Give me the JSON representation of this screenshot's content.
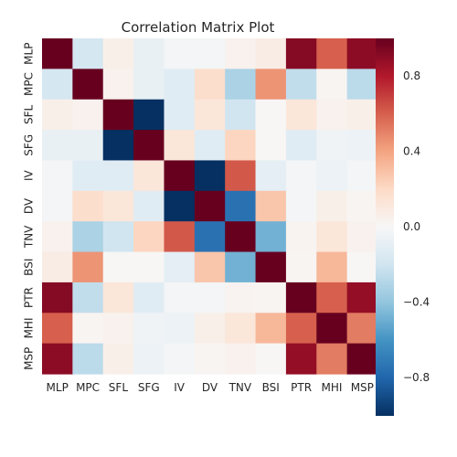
{
  "chart_data": {
    "type": "heatmap",
    "title": "Correlation Matrix Plot",
    "xlabel": "",
    "ylabel": "",
    "labels": [
      "MLP",
      "MPC",
      "SFL",
      "SFG",
      "IV",
      "DV",
      "TNV",
      "BSI",
      "PTR",
      "MHI",
      "MSP"
    ],
    "colormap": "RdBu_r",
    "vmin": -1.0,
    "vmax": 1.0,
    "colorbar_ticks": [
      -0.8,
      -0.4,
      0.0,
      0.4,
      0.8
    ],
    "colorbar_tick_labels": [
      "−0.8",
      "−0.4",
      "0.0",
      "0.4",
      "0.8"
    ],
    "matrix": [
      [
        1.0,
        -0.18,
        0.06,
        -0.08,
        -0.02,
        -0.02,
        0.04,
        0.08,
        0.92,
        0.6,
        0.9
      ],
      [
        -0.18,
        1.0,
        0.04,
        -0.08,
        -0.12,
        0.18,
        -0.32,
        0.45,
        -0.25,
        0.02,
        -0.27
      ],
      [
        0.06,
        0.04,
        1.0,
        -1.0,
        -0.12,
        0.12,
        -0.2,
        0.01,
        0.12,
        0.04,
        0.06
      ],
      [
        -0.08,
        -0.08,
        -1.0,
        1.0,
        0.12,
        -0.12,
        0.22,
        0.01,
        -0.12,
        -0.04,
        -0.06
      ],
      [
        -0.02,
        -0.12,
        -0.12,
        0.12,
        1.0,
        -1.0,
        0.62,
        -0.1,
        -0.02,
        -0.06,
        -0.02
      ],
      [
        -0.02,
        0.18,
        0.12,
        -0.12,
        -1.0,
        1.0,
        -0.75,
        0.28,
        -0.02,
        0.06,
        0.02
      ],
      [
        0.04,
        -0.32,
        -0.2,
        0.22,
        0.62,
        -0.75,
        1.0,
        -0.48,
        0.03,
        0.12,
        0.04
      ],
      [
        0.08,
        0.45,
        0.01,
        0.01,
        -0.1,
        0.28,
        -0.48,
        1.0,
        0.02,
        0.33,
        0.01
      ],
      [
        0.92,
        -0.25,
        0.12,
        -0.12,
        -0.02,
        -0.02,
        0.03,
        0.02,
        1.0,
        0.6,
        0.88
      ],
      [
        0.6,
        0.02,
        0.04,
        -0.04,
        -0.06,
        0.06,
        0.12,
        0.33,
        0.6,
        1.0,
        0.52
      ],
      [
        0.9,
        -0.27,
        0.06,
        -0.06,
        -0.02,
        0.02,
        0.04,
        0.01,
        0.88,
        0.52,
        1.0
      ]
    ]
  }
}
